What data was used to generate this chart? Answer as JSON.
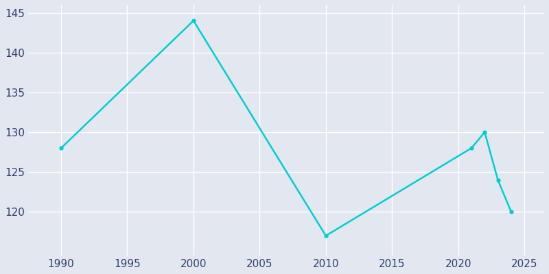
{
  "years": [
    1990,
    2000,
    2010,
    2021,
    2022,
    2023,
    2024
  ],
  "population": [
    128,
    144,
    117,
    128,
    130,
    124,
    120
  ],
  "line_color": "#00CED1",
  "marker": "o",
  "marker_size": 3.5,
  "line_width": 1.8,
  "bg_color": "#E3E8F0",
  "xlim": [
    1987.5,
    2026.5
  ],
  "ylim": [
    114.5,
    146
  ],
  "yticks": [
    120,
    125,
    130,
    135,
    140,
    145
  ],
  "xticks": [
    1990,
    1995,
    2000,
    2005,
    2010,
    2015,
    2020,
    2025
  ],
  "grid_color": "#ffffff",
  "tick_color": "#2e3f6e",
  "tick_fontsize": 11
}
